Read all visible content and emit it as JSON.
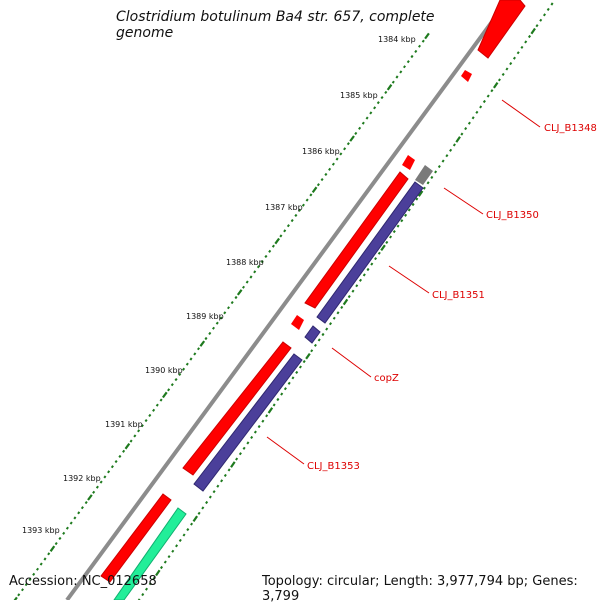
{
  "title": "Clostridium botulinum Ba4 str. 657, complete genome",
  "accession": "Accession: NC_012658",
  "topology": "Topology: circular; Length: 3,977,794 bp; Genes: 3,799",
  "ticks": [
    {
      "label": "1384 kbp"
    },
    {
      "label": "1385 kbp"
    },
    {
      "label": "1386 kbp"
    },
    {
      "label": "1387 kbp"
    },
    {
      "label": "1388 kbp"
    },
    {
      "label": "1389 kbp"
    },
    {
      "label": "1390 kbp"
    },
    {
      "label": "1391 kbp"
    },
    {
      "label": "1392 kbp"
    },
    {
      "label": "1393 kbp"
    }
  ],
  "genes": [
    {
      "name": "CLJ_B1348"
    },
    {
      "name": "CLJ_B1350"
    },
    {
      "name": "CLJ_B1351"
    },
    {
      "name": "copZ"
    },
    {
      "name": "CLJ_B1353"
    }
  ],
  "colors": {
    "forward_cds": "#ff0000",
    "reverse_cds": "#4b3f9a",
    "other_feature": "#7a7a7a",
    "rna_feature": "#22ee99",
    "backbone": "#8c8c8c",
    "tick": "#1e7a1e",
    "label_line": "#dd0000"
  }
}
